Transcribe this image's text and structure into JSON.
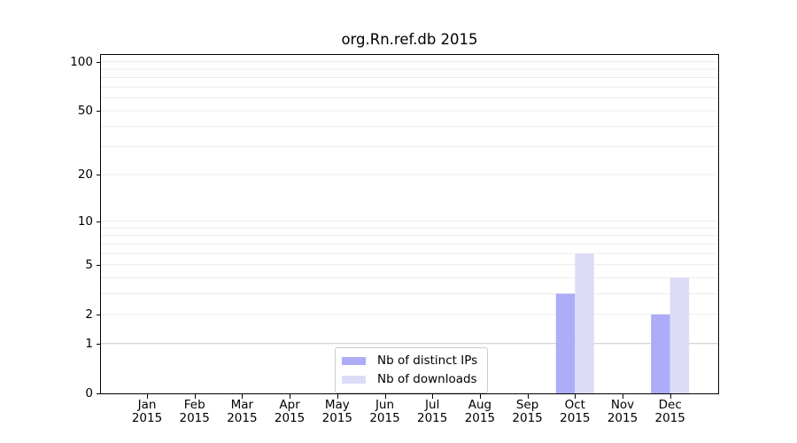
{
  "chart_data": {
    "type": "bar",
    "title": "org.Rn.ref.db 2015",
    "categories": [
      "Jan",
      "Feb",
      "Mar",
      "Apr",
      "May",
      "Jun",
      "Jul",
      "Aug",
      "Sep",
      "Oct",
      "Nov",
      "Dec"
    ],
    "category_year": "2015",
    "series": [
      {
        "name": "Nb of distinct IPs",
        "color": "#acacf8",
        "values": [
          0,
          0,
          0,
          0,
          0,
          0,
          0,
          0,
          0,
          3,
          0,
          2
        ]
      },
      {
        "name": "Nb of downloads",
        "color": "#dcdcf8",
        "values": [
          0,
          0,
          0,
          0,
          0,
          0,
          0,
          0,
          0,
          6,
          0,
          4
        ]
      }
    ],
    "xlabel": "",
    "ylabel": "",
    "yscale": "log1p",
    "ylim": [
      0,
      110
    ],
    "yticks": [
      0,
      1,
      2,
      5,
      10,
      20,
      50,
      100
    ],
    "grid": {
      "minor_values": [
        2,
        3,
        4,
        5,
        6,
        7,
        8,
        9,
        10,
        20,
        30,
        40,
        50,
        60,
        70,
        80,
        90,
        100
      ],
      "emphasis_value": 1,
      "minor_color": "#ececec",
      "emphasis_color": "#c8c8c8"
    },
    "legend_position": "lower-center-inside",
    "axis_color": "#000000",
    "background": "#ffffff"
  }
}
